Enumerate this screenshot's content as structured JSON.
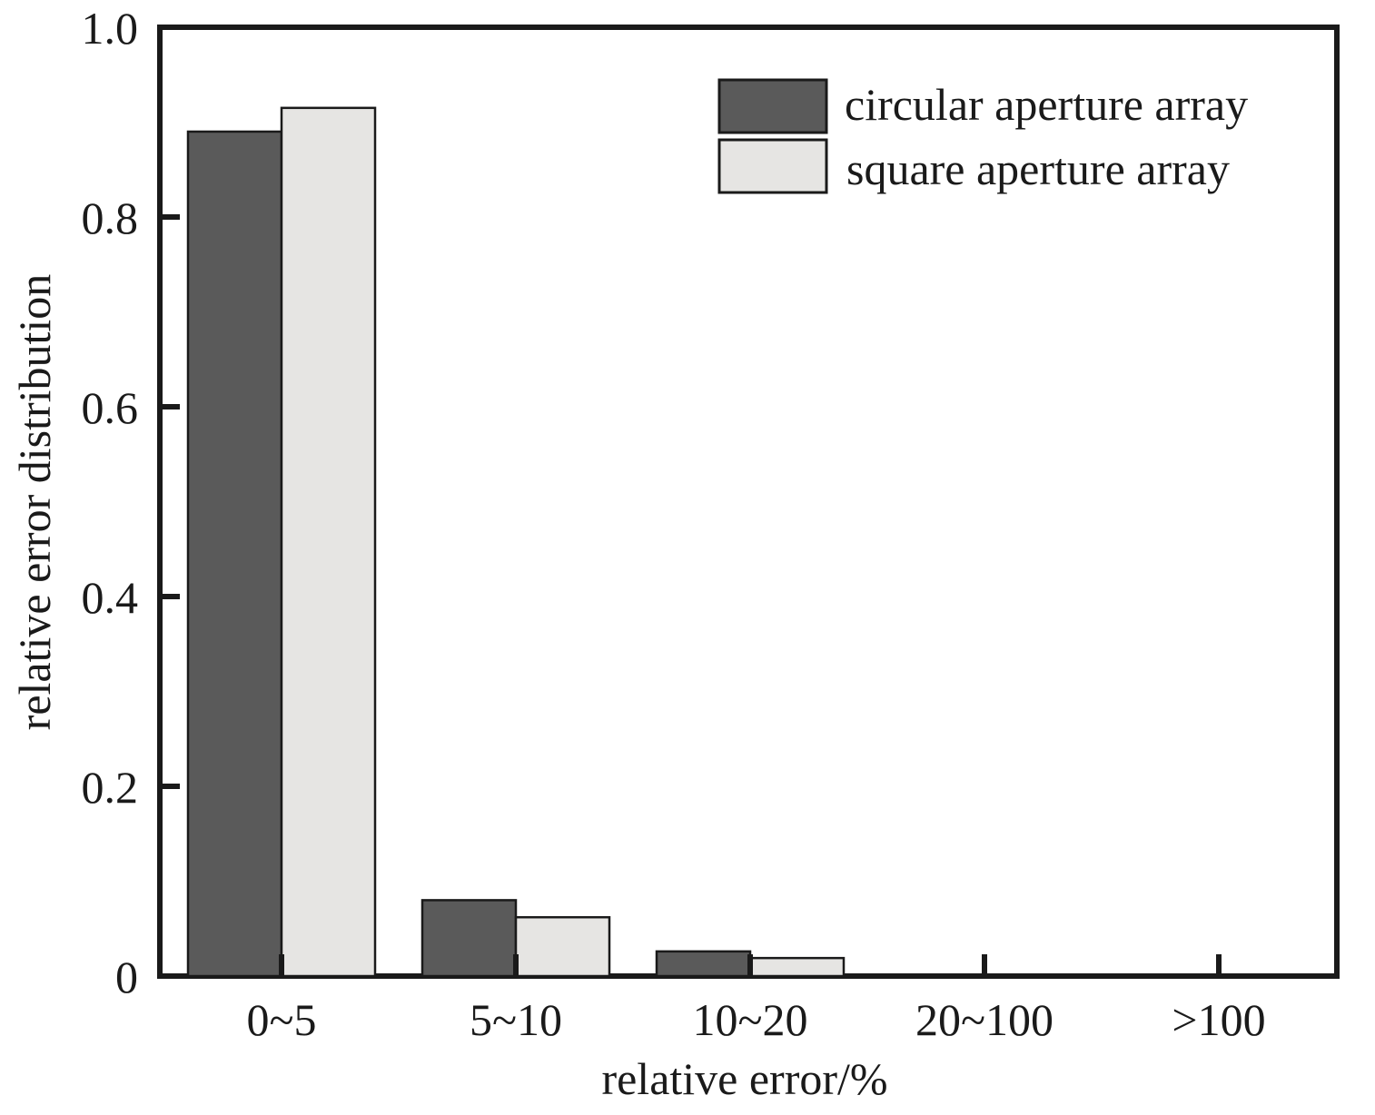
{
  "chart_data": {
    "type": "bar",
    "categories": [
      "0~5",
      "5~10",
      "10~20",
      "20~100",
      ">100"
    ],
    "series": [
      {
        "name": "circular aperture array",
        "color": "#5a5a5a",
        "values": [
          0.89,
          0.08,
          0.026,
          0,
          0
        ]
      },
      {
        "name": "square aperture array",
        "color": "#e6e5e3",
        "values": [
          0.915,
          0.062,
          0.019,
          0,
          0
        ]
      }
    ],
    "xlabel": "relative error/%",
    "ylabel": "relative error distribution",
    "ylim": [
      0,
      1.0
    ],
    "yticks": [
      0,
      0.2,
      0.4,
      0.6,
      0.8,
      1.0
    ],
    "ytick_labels": [
      "0",
      "0.2",
      "0.4",
      "0.6",
      "0.8",
      "1.0"
    ],
    "grid": false,
    "legend_position": "top-right"
  }
}
